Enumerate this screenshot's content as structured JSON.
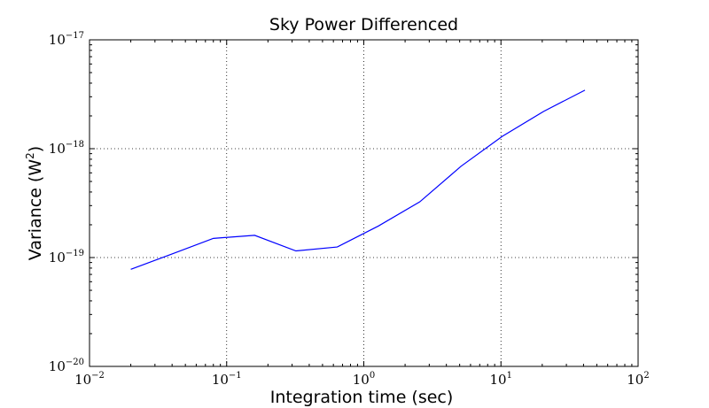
{
  "chart_data": {
    "type": "line",
    "title": "Sky Power Differenced",
    "xlabel": "Integration time (sec)",
    "ylabel": "Variance (W",
    "ylabel_sup": "2",
    "ylabel_end": ")",
    "x_scale": "log",
    "y_scale": "log",
    "xlim": [
      0.01,
      100
    ],
    "ylim": [
      1e-20,
      1e-17
    ],
    "grid": true,
    "x_ticks": [
      {
        "value": 0.01,
        "base": "10",
        "exp": "−2"
      },
      {
        "value": 0.1,
        "base": "10",
        "exp": "−1"
      },
      {
        "value": 1,
        "base": "10",
        "exp": "0"
      },
      {
        "value": 10,
        "base": "10",
        "exp": "1"
      },
      {
        "value": 100,
        "base": "10",
        "exp": "2"
      }
    ],
    "y_ticks": [
      {
        "value": 1e-20,
        "base": "10",
        "exp": "−20"
      },
      {
        "value": 1e-19,
        "base": "10",
        "exp": "−19"
      },
      {
        "value": 1e-18,
        "base": "10",
        "exp": "−18"
      },
      {
        "value": 1e-17,
        "base": "10",
        "exp": "−17"
      }
    ],
    "series": [
      {
        "color": "#0000ff",
        "x": [
          0.02,
          0.04,
          0.08,
          0.16,
          0.32,
          0.64,
          1.28,
          2.56,
          5.12,
          10.24,
          20.48,
          40.96
        ],
        "y": [
          7.8e-20,
          1.08e-19,
          1.5e-19,
          1.6e-19,
          1.15e-19,
          1.25e-19,
          1.95e-19,
          3.25e-19,
          6.9e-19,
          1.3e-18,
          2.2e-18,
          3.45e-18
        ]
      }
    ]
  }
}
